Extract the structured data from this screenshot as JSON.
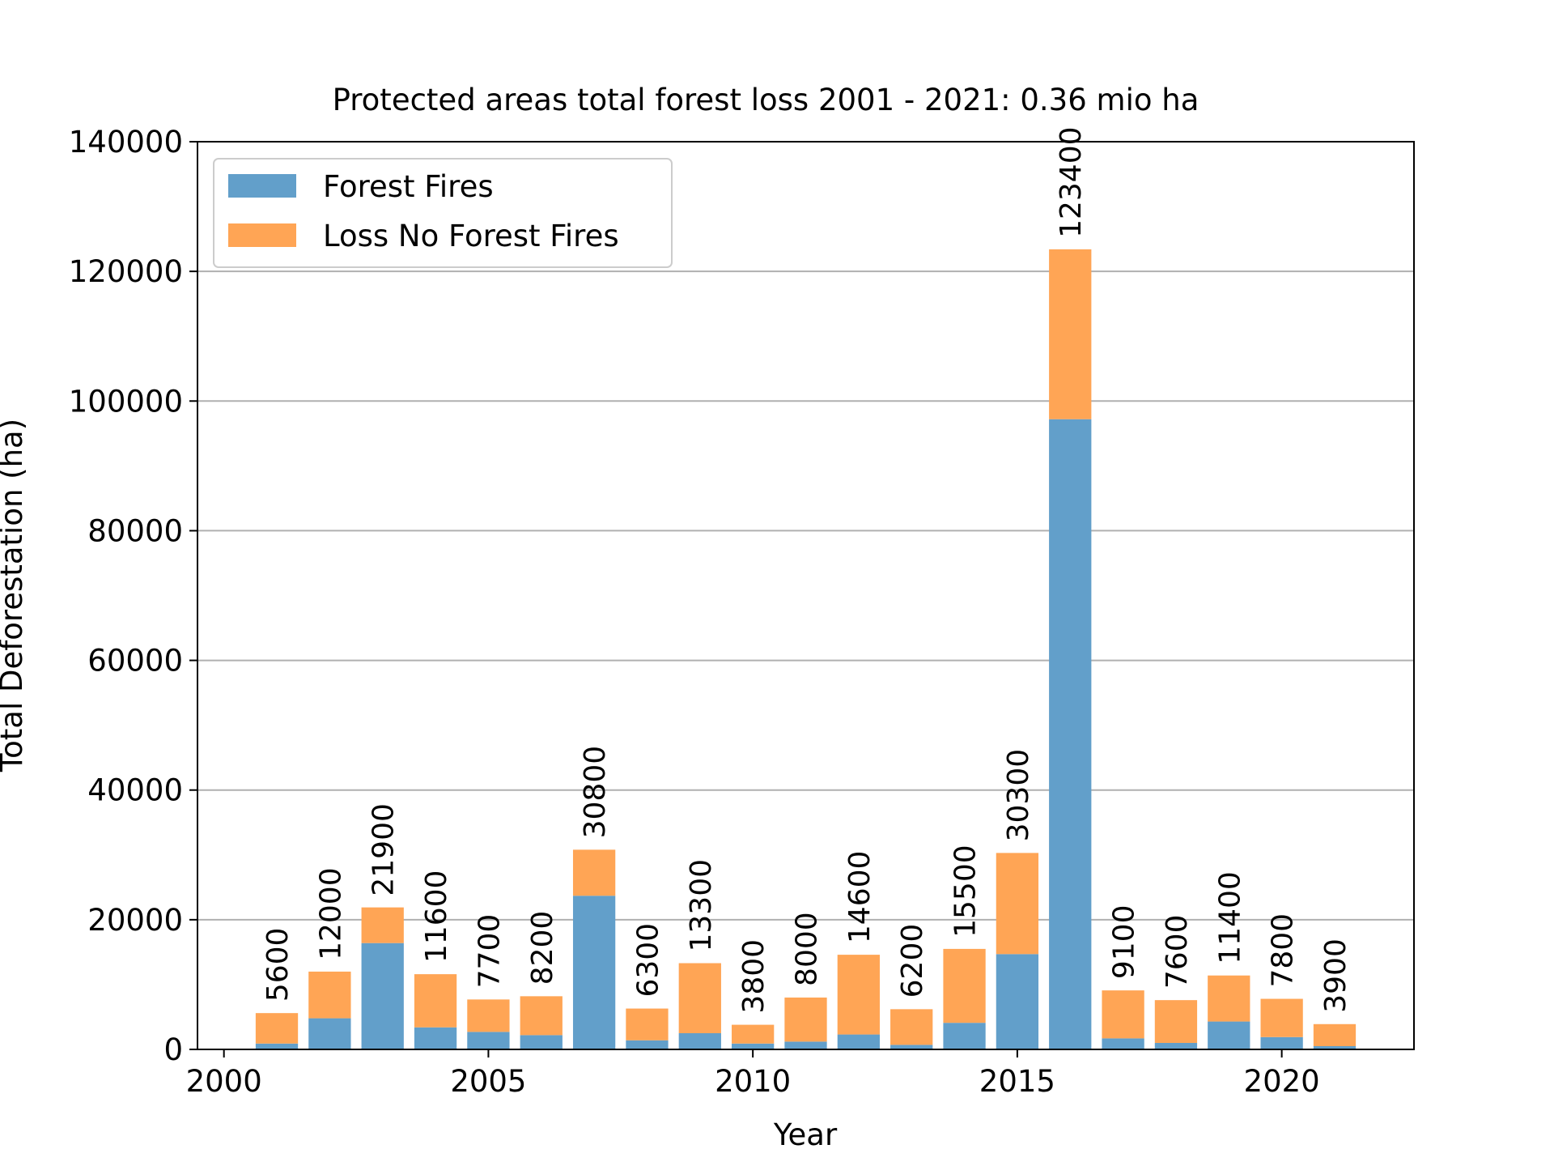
{
  "chart_data": {
    "type": "bar",
    "stacked": true,
    "title": "Protected areas total forest loss 2001 - 2021: 0.36 mio ha",
    "xlabel": "Year",
    "ylabel": "Total Deforestation (ha)",
    "xlim": [
      1999.5,
      2022.5
    ],
    "ylim": [
      0,
      140000
    ],
    "xticks": [
      2000,
      2005,
      2010,
      2015,
      2020
    ],
    "yticks": [
      0,
      20000,
      40000,
      60000,
      80000,
      100000,
      120000,
      140000
    ],
    "grid": "y",
    "legend_position": "top-left",
    "x": [
      2001,
      2002,
      2003,
      2004,
      2005,
      2006,
      2007,
      2008,
      2009,
      2010,
      2011,
      2012,
      2013,
      2014,
      2015,
      2016,
      2017,
      2018,
      2019,
      2020,
      2021
    ],
    "series": [
      {
        "name": "Forest Fires",
        "color": "#629fca",
        "values": [
          900,
          4800,
          16400,
          3400,
          2700,
          2200,
          23700,
          1400,
          2500,
          900,
          1200,
          2300,
          700,
          4100,
          14700,
          97200,
          1700,
          1000,
          4300,
          1900,
          500
        ]
      },
      {
        "name": "Loss No Forest Fires",
        "color": "#ffa555",
        "values": [
          4700,
          7200,
          5500,
          8200,
          5000,
          6000,
          7100,
          4900,
          10800,
          2900,
          6800,
          12300,
          5500,
          11400,
          15600,
          26200,
          7400,
          6600,
          7100,
          5900,
          3400
        ]
      }
    ],
    "totals": [
      "5600",
      "12000",
      "21900",
      "11600",
      "7700",
      "8200",
      "30800",
      "6300",
      "13300",
      "3800",
      "8000",
      "14600",
      "6200",
      "15500",
      "30300",
      "123400",
      "9100",
      "7600",
      "11400",
      "7800",
      "3900"
    ]
  }
}
